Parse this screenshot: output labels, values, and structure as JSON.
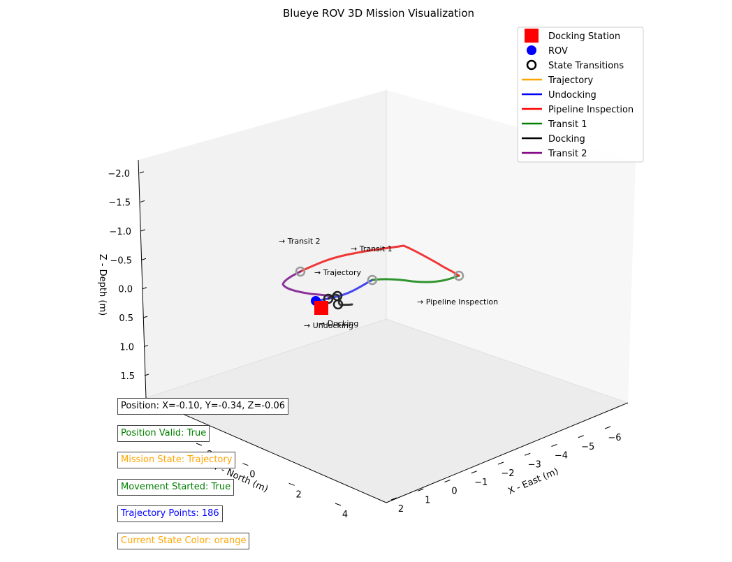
{
  "chart_data": {
    "type": "line",
    "title": "Blueye ROV 3D Mission Visualization",
    "xlabel": "X - East (m)",
    "ylabel": "Y - North (m)",
    "zlabel": "Z - Depth (m)",
    "xlim": [
      2,
      -6.5
    ],
    "ylim": [
      -3.5,
      5
    ],
    "zlim": [
      2.2,
      -2.2
    ],
    "x_ticks": [
      "2",
      "1",
      "0",
      "−1",
      "−2",
      "−3",
      "−4",
      "−5",
      "−6"
    ],
    "y_ticks": [
      "−2",
      "0",
      "2",
      "4"
    ],
    "z_ticks": [
      "−2.0",
      "−1.5",
      "−1.0",
      "−0.5",
      "0.0",
      "0.5",
      "1.0",
      "1.5"
    ],
    "legend": {
      "position": "upper right",
      "items": [
        {
          "label": "Docking Station",
          "kind": "square",
          "color": "#ff0000"
        },
        {
          "label": "ROV",
          "kind": "dot",
          "color": "#0000ff"
        },
        {
          "label": "State Transitions",
          "kind": "ring",
          "color": "#000000"
        },
        {
          "label": "Trajectory",
          "kind": "line",
          "color": "#ffa500"
        },
        {
          "label": "Undocking",
          "kind": "line",
          "color": "#0000ff"
        },
        {
          "label": "Pipeline Inspection",
          "kind": "line",
          "color": "#ff0000"
        },
        {
          "label": "Transit 1",
          "kind": "line",
          "color": "#008000"
        },
        {
          "label": "Docking",
          "kind": "line",
          "color": "#000000"
        },
        {
          "label": "Transit 2",
          "kind": "line",
          "color": "#800080"
        }
      ]
    },
    "annotations": [
      {
        "text": "→ Transit 2"
      },
      {
        "text": "→ Transit 1"
      },
      {
        "text": "→ Trajectory"
      },
      {
        "text": "→ Pipeline Inspection"
      },
      {
        "text": "→ Docking"
      },
      {
        "text": "→ Undocking"
      }
    ]
  },
  "status": [
    {
      "text": "Position: X=-0.10, Y=-0.34, Z=-0.06",
      "color": "#000000"
    },
    {
      "text": "Position Valid: True",
      "color": "#008000"
    },
    {
      "text": "Mission State: Trajectory",
      "color": "#ffa500"
    },
    {
      "text": "Movement Started: True",
      "color": "#008000"
    },
    {
      "text": "Trajectory Points: 186",
      "color": "#0000ff"
    },
    {
      "text": "Current State Color: orange",
      "color": "#ffa500"
    }
  ]
}
